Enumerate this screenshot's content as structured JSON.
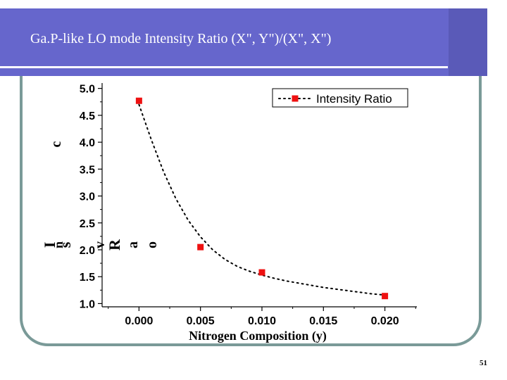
{
  "slide": {
    "title": "Ga.P-like LO mode Intensity Ratio (X\", Y\")/(X\", X\")",
    "page_number": "51",
    "colors": {
      "header": "#6666cc",
      "frame": "#7a9a98",
      "marker": "#ee1111"
    }
  },
  "chart_data": {
    "type": "scatter",
    "title": "",
    "xlabel": "Nitrogen Composition (y)",
    "ylabel_glyphs": [
      "c",
      "I",
      "n",
      "s",
      "v",
      "R",
      "a",
      "o"
    ],
    "xlim": [
      -0.003,
      0.0226
    ],
    "ylim": [
      0.94,
      5.1
    ],
    "xticks": [
      0.0,
      0.005,
      0.01,
      0.015,
      0.02
    ],
    "xtick_labels": [
      "0.000",
      "0.005",
      "0.010",
      "0.015",
      "0.020"
    ],
    "yticks": [
      1.0,
      1.5,
      2.0,
      2.5,
      3.0,
      3.5,
      4.0,
      4.5,
      5.0
    ],
    "ytick_labels": [
      "1.0",
      "1.5",
      "2.0",
      "2.5",
      "3.0",
      "3.5",
      "4.0",
      "4.5",
      "5.0"
    ],
    "legend_position": "top-right",
    "series": [
      {
        "name": "Intensity Ratio",
        "x": [
          0.0,
          0.005,
          0.01,
          0.02
        ],
        "y": [
          4.77,
          2.05,
          1.58,
          1.14
        ],
        "marker": "square",
        "line": "dotted"
      }
    ],
    "fit_curve": {
      "style": "dotted",
      "x": [
        0.0,
        0.001,
        0.002,
        0.003,
        0.004,
        0.005,
        0.006,
        0.007,
        0.008,
        0.009,
        0.01,
        0.011,
        0.012,
        0.013,
        0.014,
        0.015,
        0.016,
        0.017,
        0.018,
        0.019,
        0.02
      ],
      "y": [
        4.7,
        4.05,
        3.45,
        2.95,
        2.55,
        2.24,
        2.0,
        1.82,
        1.69,
        1.6,
        1.53,
        1.47,
        1.42,
        1.38,
        1.34,
        1.3,
        1.27,
        1.24,
        1.21,
        1.18,
        1.16
      ]
    }
  }
}
